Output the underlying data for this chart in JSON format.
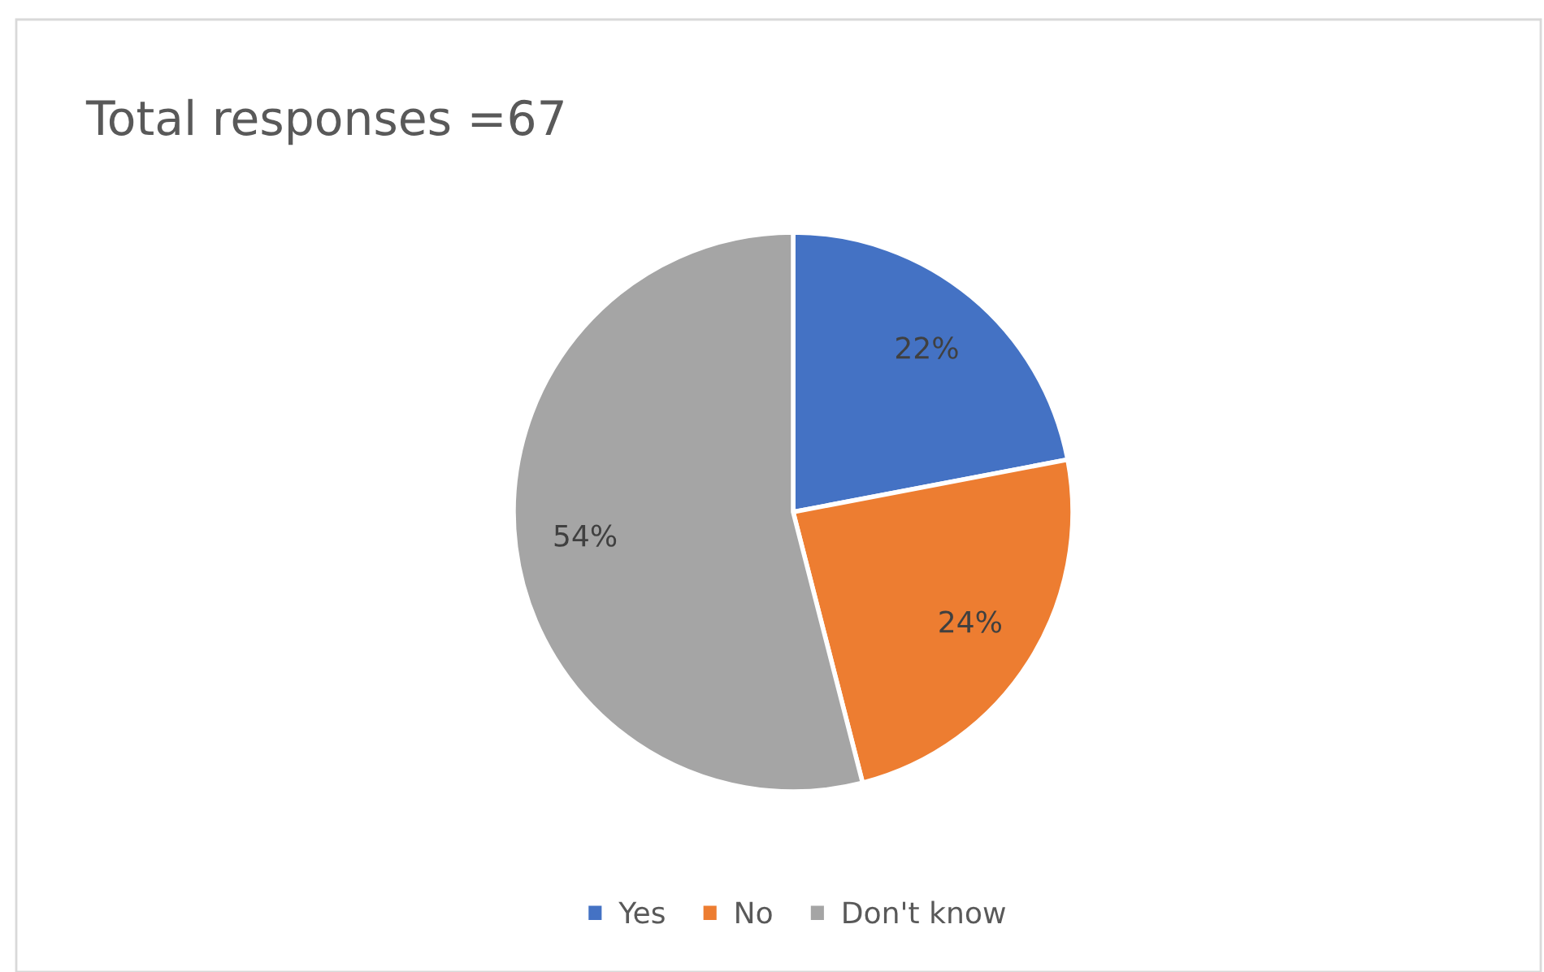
{
  "chart_data": {
    "type": "pie",
    "title": "Total responses =67",
    "categories": [
      "Yes",
      "No",
      "Don't know"
    ],
    "values": [
      22,
      24,
      54
    ],
    "colors": [
      "#4472c4",
      "#ed7d31",
      "#a5a5a5"
    ],
    "value_labels": [
      "22%",
      "24%",
      "54%"
    ],
    "legend": "bottom"
  }
}
